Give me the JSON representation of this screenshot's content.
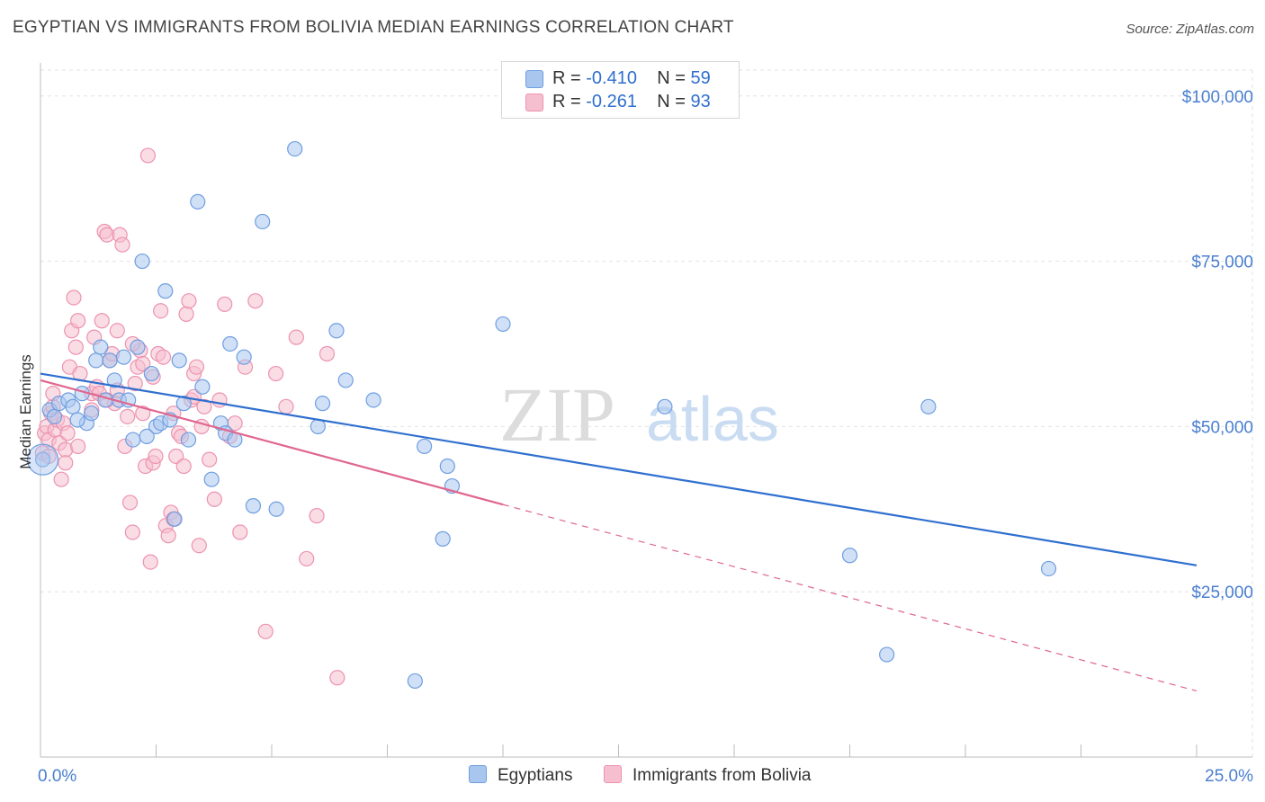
{
  "title": "EGYPTIAN VS IMMIGRANTS FROM BOLIVIA MEDIAN EARNINGS CORRELATION CHART",
  "source": "Source: ZipAtlas.com",
  "watermark": {
    "zip": "ZIP",
    "atlas": "atlas"
  },
  "colors": {
    "blue_fill": "#a9c6ef",
    "blue_stroke": "#6f9ee0",
    "blue_line": "#2f6fcf",
    "pink_fill": "#f6bfd0",
    "pink_stroke": "#ec93b0",
    "pink_line": "#e0668f",
    "axis_text": "#4a7fd0"
  },
  "legend": {
    "rows": [
      {
        "r_label": "R =",
        "r_value": "-0.410",
        "n_label": "N =",
        "n_value": "59"
      },
      {
        "r_label": "R =",
        "r_value": "-0.261",
        "n_label": "N =",
        "n_value": "93"
      }
    ]
  },
  "bottom_legend": [
    "Egyptians",
    "Immigrants from Bolivia"
  ],
  "chart_data": {
    "type": "scatter",
    "xlabel": "",
    "ylabel": "Median Earnings",
    "xlim": [
      0,
      25
    ],
    "ylim": [
      0,
      105000
    ],
    "x_tick_labels": [
      "0.0%",
      "25.0%"
    ],
    "y_ticks": [
      25000,
      50000,
      75000,
      100000
    ],
    "y_tick_labels": [
      "$25,000",
      "$50,000",
      "$75,000",
      "$100,000"
    ],
    "grid": true,
    "series": [
      {
        "name": "Egyptians",
        "r": -0.41,
        "n": 59,
        "trend": {
          "x0": 0,
          "y0": 58000,
          "x1": 25,
          "y1": 29000,
          "dashed_from": null
        },
        "points": [
          [
            0.05,
            45000
          ],
          [
            0.2,
            52500
          ],
          [
            0.3,
            51500
          ],
          [
            0.4,
            53500
          ],
          [
            0.6,
            54000
          ],
          [
            0.7,
            53000
          ],
          [
            0.9,
            55000
          ],
          [
            1.0,
            50500
          ],
          [
            1.1,
            52000
          ],
          [
            1.2,
            60000
          ],
          [
            1.3,
            62000
          ],
          [
            1.4,
            54000
          ],
          [
            1.5,
            60000
          ],
          [
            1.7,
            54000
          ],
          [
            1.8,
            60500
          ],
          [
            1.9,
            54000
          ],
          [
            2.0,
            48000
          ],
          [
            2.1,
            62000
          ],
          [
            2.2,
            75000
          ],
          [
            2.4,
            58000
          ],
          [
            2.5,
            50000
          ],
          [
            2.6,
            50500
          ],
          [
            2.7,
            70500
          ],
          [
            2.8,
            51000
          ],
          [
            2.9,
            36000
          ],
          [
            3.0,
            60000
          ],
          [
            3.1,
            53500
          ],
          [
            3.2,
            48000
          ],
          [
            3.4,
            84000
          ],
          [
            3.5,
            56000
          ],
          [
            3.7,
            42000
          ],
          [
            3.9,
            50500
          ],
          [
            4.0,
            49000
          ],
          [
            4.1,
            62500
          ],
          [
            4.2,
            48000
          ],
          [
            4.4,
            60500
          ],
          [
            4.6,
            38000
          ],
          [
            4.8,
            81000
          ],
          [
            5.1,
            37500
          ],
          [
            5.5,
            92000
          ],
          [
            6.0,
            50000
          ],
          [
            6.1,
            53500
          ],
          [
            6.4,
            64500
          ],
          [
            6.6,
            57000
          ],
          [
            7.2,
            54000
          ],
          [
            8.1,
            11500
          ],
          [
            8.3,
            47000
          ],
          [
            8.7,
            33000
          ],
          [
            8.8,
            44000
          ],
          [
            8.9,
            41000
          ],
          [
            10.0,
            65500
          ],
          [
            13.5,
            53000
          ],
          [
            17.5,
            30500
          ],
          [
            18.3,
            15500
          ],
          [
            19.2,
            53000
          ],
          [
            21.8,
            28500
          ],
          [
            1.6,
            57000
          ],
          [
            0.8,
            51000
          ],
          [
            2.3,
            48500
          ]
        ]
      },
      {
        "name": "Immigrants from Bolivia",
        "r": -0.261,
        "n": 93,
        "trend": {
          "x0": 0,
          "y0": 57000,
          "x1": 25,
          "y1": 10000,
          "dashed_from": 10
        }
      }
    ]
  }
}
